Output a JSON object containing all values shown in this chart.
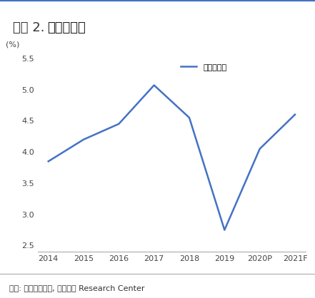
{
  "title": "그림 2.  영업이익률",
  "ylabel": "(%)",
  "xlabel_units": "(%)",
  "x_labels": [
    "2014",
    "2015",
    "2016",
    "2017",
    "2018",
    "2019",
    "2020P",
    "2021F"
  ],
  "x_values": [
    0,
    1,
    2,
    3,
    4,
    5,
    6,
    7
  ],
  "y_values": [
    3.85,
    4.2,
    4.45,
    5.07,
    4.55,
    2.75,
    4.05,
    4.6
  ],
  "ylim": [
    2.4,
    5.6
  ],
  "yticks": [
    2.5,
    3.0,
    3.5,
    4.0,
    4.5,
    5.0,
    5.5
  ],
  "line_color": "#4472C4",
  "line_width": 1.8,
  "legend_label": "영업이익률",
  "footnote": "자료: 롯데하이마트, 대신증권 Research Center",
  "title_bg_color": "#d9d9d9",
  "title_bar_color": "#4472C4",
  "bg_color": "#ffffff",
  "plot_bg_color": "#ffffff"
}
